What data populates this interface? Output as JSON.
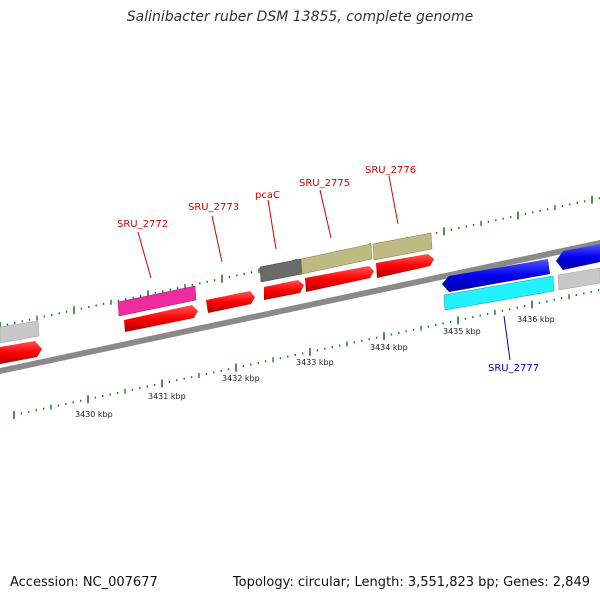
{
  "title": "Salinibacter ruber DSM 13855, complete genome",
  "footer": {
    "accession": "Accession: NC_007677",
    "stats": "Topology: circular; Length: 3,551,823 bp; Genes: 2,849"
  },
  "colors": {
    "backbone": "#8a8a8a",
    "tick": "#1e7a1e",
    "forward_label": "#d40000",
    "reverse_label": "#0000c0"
  },
  "scale_labels": [
    "3430 kbp",
    "3431 kbp",
    "3432 kbp",
    "3433 kbp",
    "3434 kbp",
    "3435 kbp",
    "3436 kbp"
  ],
  "genes": [
    {
      "name": "SRU_2772",
      "strand": "forward"
    },
    {
      "name": "SRU_2773",
      "strand": "forward"
    },
    {
      "name": "pcaC",
      "strand": "forward"
    },
    {
      "name": "SRU_2775",
      "strand": "forward"
    },
    {
      "name": "SRU_2776",
      "strand": "forward"
    },
    {
      "name": "SRU_2777",
      "strand": "reverse"
    }
  ]
}
